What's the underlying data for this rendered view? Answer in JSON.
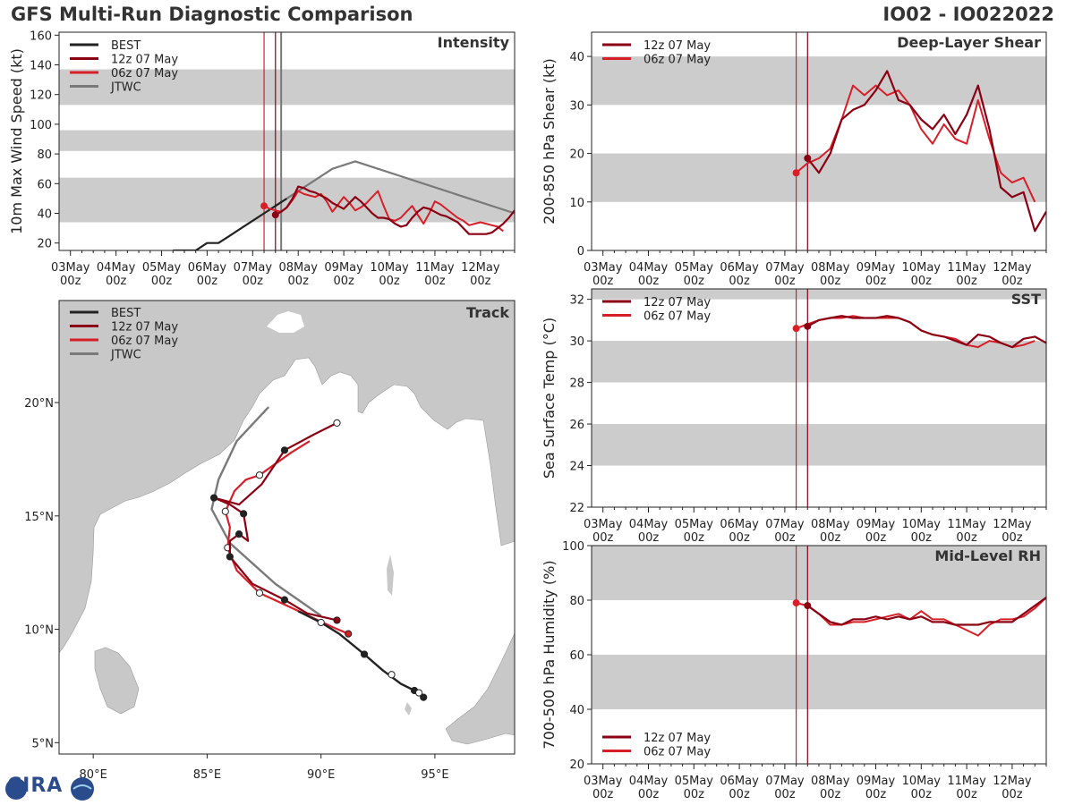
{
  "header": {
    "title": "GFS Multi-Run Diagnostic Comparison",
    "storm": "IO02 - IO022022"
  },
  "logo": {
    "label": "CIRA"
  },
  "colors": {
    "best": "#222222",
    "run12": "#8b0012",
    "run06": "#d81e28",
    "jtwc": "#7a7a7a",
    "band": "#cccccc",
    "land": "#c8c8c8",
    "vline": "#cc0000"
  },
  "time_axis": {
    "ticks": [
      {
        "day": 3,
        "l1": "03May",
        "l2": "00z"
      },
      {
        "day": 4,
        "l1": "04May",
        "l2": "00z"
      },
      {
        "day": 5,
        "l1": "05May",
        "l2": "00z"
      },
      {
        "day": 6,
        "l1": "06May",
        "l2": "00z"
      },
      {
        "day": 7,
        "l1": "07May",
        "l2": "00z"
      },
      {
        "day": 8,
        "l1": "08May",
        "l2": "00z"
      },
      {
        "day": 9,
        "l1": "09May",
        "l2": "00z"
      },
      {
        "day": 10,
        "l1": "10May",
        "l2": "00z"
      },
      {
        "day": 11,
        "l1": "11May",
        "l2": "00z"
      },
      {
        "day": 12,
        "l1": "12May",
        "l2": "00z"
      }
    ],
    "range": [
      2.75,
      12.75
    ]
  },
  "chart_data": [
    {
      "id": "intensity",
      "type": "line",
      "title": "Intensity",
      "ylabel": "10m Max Wind Speed (kt)",
      "ylim": [
        15,
        162
      ],
      "yticks": [
        20,
        40,
        60,
        80,
        100,
        120,
        140,
        160
      ],
      "bands": [
        [
          34,
          64
        ],
        [
          82,
          96
        ],
        [
          113,
          137
        ]
      ],
      "vlines": [
        7.25,
        7.5,
        7.625
      ],
      "legend": [
        "BEST",
        "12z 07 May",
        "06z 07 May",
        "JTWC"
      ],
      "series": [
        {
          "name": "BEST",
          "key": "best",
          "width": 2.2,
          "x": [
            5.25,
            5.5,
            5.75,
            6.0,
            6.25,
            6.5,
            6.75,
            7.0,
            7.25,
            7.5,
            7.75
          ],
          "y": [
            15,
            15,
            15,
            20,
            20,
            25,
            30,
            35,
            40,
            45,
            50
          ]
        },
        {
          "name": "JTWC",
          "key": "jtwc",
          "width": 2.2,
          "x": [
            7.75,
            8.25,
            8.75,
            9.25,
            9.75,
            10.25,
            10.75,
            11.25,
            11.75,
            12.25,
            12.75
          ],
          "y": [
            50,
            60,
            70,
            75,
            70,
            65,
            60,
            55,
            50,
            45,
            40
          ]
        },
        {
          "name": "06z 07 May",
          "key": "run06",
          "width": 2.0,
          "start_dot": true,
          "x": [
            7.25,
            7.375,
            7.5,
            7.625,
            7.75,
            7.875,
            8.0,
            8.125,
            8.25,
            8.375,
            8.5,
            8.625,
            8.75,
            8.875,
            9.0,
            9.125,
            9.25,
            9.375,
            9.5,
            9.625,
            9.75,
            9.875,
            10.0,
            10.125,
            10.25,
            10.375,
            10.5,
            10.625,
            10.75,
            10.875,
            11.0,
            11.125,
            11.25,
            11.375,
            11.5,
            11.625,
            11.75,
            11.875,
            12.0,
            12.125,
            12.25,
            12.375,
            12.5
          ],
          "y": [
            45,
            43,
            42,
            41,
            44,
            49,
            55,
            53,
            52,
            51,
            53,
            48,
            41,
            46,
            51,
            47,
            42,
            44,
            47,
            51,
            55,
            45,
            36,
            35,
            37,
            41,
            45,
            39,
            33,
            40,
            48,
            46,
            43,
            40,
            37,
            35,
            32,
            33,
            34,
            33,
            32,
            31,
            28
          ]
        },
        {
          "name": "12z 07 May",
          "key": "run12",
          "width": 2.2,
          "start_dot": true,
          "x": [
            7.5,
            7.625,
            7.75,
            7.875,
            8.0,
            8.125,
            8.25,
            8.375,
            8.5,
            8.625,
            8.75,
            8.875,
            9.0,
            9.125,
            9.25,
            9.375,
            9.5,
            9.625,
            9.75,
            9.875,
            10.0,
            10.125,
            10.25,
            10.375,
            10.5,
            10.625,
            10.75,
            10.875,
            11.0,
            11.125,
            11.25,
            11.375,
            11.5,
            11.625,
            11.75,
            11.875,
            12.0,
            12.125,
            12.25,
            12.375,
            12.5,
            12.625,
            12.75
          ],
          "y": [
            39,
            41,
            44,
            50,
            58,
            57,
            55,
            54,
            52,
            50,
            47,
            45,
            43,
            47,
            51,
            48,
            44,
            40,
            37,
            37,
            36,
            33,
            31,
            32,
            37,
            41,
            44,
            43,
            41,
            39,
            38,
            36,
            34,
            30,
            26,
            26,
            26,
            26,
            27,
            30,
            33,
            37,
            42
          ]
        }
      ]
    },
    {
      "id": "shear",
      "type": "line",
      "title": "Deep-Layer Shear",
      "ylabel": "200-850 hPa Shear (kt)",
      "ylim": [
        0,
        45
      ],
      "yticks": [
        0,
        10,
        20,
        30,
        40
      ],
      "bands": [
        [
          10,
          20
        ],
        [
          30,
          40
        ]
      ],
      "vlines": [
        7.25,
        7.5
      ],
      "legend": [
        "12z 07 May",
        "06z 07 May"
      ],
      "series": [
        {
          "name": "06z 07 May",
          "key": "run06",
          "width": 2.0,
          "start_dot": true,
          "x": [
            7.25,
            7.5,
            7.75,
            8.0,
            8.25,
            8.5,
            8.75,
            9.0,
            9.25,
            9.5,
            9.75,
            10.0,
            10.25,
            10.5,
            10.75,
            11.0,
            11.25,
            11.5,
            11.75,
            12.0,
            12.25,
            12.5
          ],
          "y": [
            16,
            18,
            19,
            21,
            27,
            34,
            32,
            34,
            32,
            33,
            30,
            25,
            22,
            26,
            23,
            22,
            31,
            23,
            16,
            14,
            15,
            10
          ]
        },
        {
          "name": "12z 07 May",
          "key": "run12",
          "width": 2.2,
          "start_dot": true,
          "x": [
            7.5,
            7.75,
            8.0,
            8.25,
            8.5,
            8.75,
            9.0,
            9.25,
            9.5,
            9.75,
            10.0,
            10.25,
            10.5,
            10.75,
            11.0,
            11.25,
            11.5,
            11.75,
            12.0,
            12.25,
            12.5,
            12.75
          ],
          "y": [
            19,
            16,
            20,
            27,
            29,
            30,
            33,
            37,
            31,
            30,
            27,
            25,
            28,
            24,
            28,
            34,
            25,
            13,
            11,
            12,
            4,
            8
          ]
        }
      ]
    },
    {
      "id": "sst",
      "type": "line",
      "title": "SST",
      "ylabel": "Sea Surface Temp (°C)",
      "ylim": [
        22,
        32.5
      ],
      "yticks": [
        22,
        24,
        26,
        28,
        30,
        32
      ],
      "bands": [
        [
          24,
          26
        ],
        [
          28,
          30
        ],
        [
          32,
          33
        ]
      ],
      "vlines": [
        7.25,
        7.5
      ],
      "legend": [
        "12z 07 May",
        "06z 07 May"
      ],
      "series": [
        {
          "name": "06z 07 May",
          "key": "run06",
          "width": 2.0,
          "start_dot": true,
          "x": [
            7.25,
            7.5,
            7.75,
            8.0,
            8.25,
            8.5,
            8.75,
            9.0,
            9.25,
            9.5,
            9.75,
            10.0,
            10.25,
            10.5,
            10.75,
            11.0,
            11.25,
            11.5,
            11.75,
            12.0,
            12.25,
            12.5
          ],
          "y": [
            30.6,
            30.8,
            31.0,
            31.1,
            31.1,
            31.2,
            31.1,
            31.1,
            31.1,
            31.1,
            30.9,
            30.5,
            30.3,
            30.2,
            30.1,
            29.8,
            29.7,
            30.0,
            29.9,
            29.7,
            29.8,
            30.0
          ]
        },
        {
          "name": "12z 07 May",
          "key": "run12",
          "width": 2.2,
          "start_dot": true,
          "x": [
            7.5,
            7.75,
            8.0,
            8.25,
            8.5,
            8.75,
            9.0,
            9.25,
            9.5,
            9.75,
            10.0,
            10.25,
            10.5,
            10.75,
            11.0,
            11.25,
            11.5,
            11.75,
            12.0,
            12.25,
            12.5,
            12.75
          ],
          "y": [
            30.7,
            31.0,
            31.1,
            31.2,
            31.1,
            31.1,
            31.1,
            31.2,
            31.1,
            30.9,
            30.5,
            30.3,
            30.2,
            30.0,
            29.8,
            30.3,
            30.2,
            29.9,
            29.7,
            30.1,
            30.2,
            29.9
          ]
        }
      ]
    },
    {
      "id": "rh",
      "type": "line",
      "title": "Mid-Level RH",
      "ylabel": "700-500 hPa Humidity (%)",
      "ylim": [
        20,
        100
      ],
      "yticks": [
        20,
        40,
        60,
        80,
        100
      ],
      "bands": [
        [
          40,
          60
        ],
        [
          80,
          100
        ]
      ],
      "vlines": [
        7.25,
        7.5
      ],
      "legend": [
        "12z 07 May",
        "06z 07 May"
      ],
      "legend_pos": "bottom-left",
      "series": [
        {
          "name": "06z 07 May",
          "key": "run06",
          "width": 2.0,
          "start_dot": true,
          "x": [
            7.25,
            7.5,
            7.75,
            8.0,
            8.25,
            8.5,
            8.75,
            9.0,
            9.25,
            9.5,
            9.75,
            10.0,
            10.25,
            10.5,
            10.75,
            11.0,
            11.25,
            11.5,
            11.75,
            12.0,
            12.25,
            12.5,
            12.75
          ],
          "y": [
            79,
            78,
            75,
            71,
            71,
            72,
            72,
            73,
            74,
            75,
            73,
            76,
            73,
            73,
            71,
            69,
            67,
            71,
            73,
            73,
            74,
            77,
            81
          ]
        },
        {
          "name": "12z 07 May",
          "key": "run12",
          "width": 2.2,
          "start_dot": true,
          "x": [
            7.5,
            7.75,
            8.0,
            8.25,
            8.5,
            8.75,
            9.0,
            9.25,
            9.5,
            9.75,
            10.0,
            10.25,
            10.5,
            10.75,
            11.0,
            11.25,
            11.5,
            11.75,
            12.0,
            12.25,
            12.5,
            12.75
          ],
          "y": [
            78,
            75,
            72,
            71,
            73,
            73,
            74,
            73,
            74,
            73,
            74,
            72,
            72,
            71,
            71,
            71,
            72,
            72,
            72,
            75,
            78,
            81
          ]
        }
      ]
    },
    {
      "id": "track",
      "type": "map",
      "title": "Track",
      "lon_range": [
        78.5,
        98.5
      ],
      "lat_range": [
        4.5,
        24.5
      ],
      "xticks": [
        {
          "v": 80,
          "label": "80°E"
        },
        {
          "v": 85,
          "label": "85°E"
        },
        {
          "v": 90,
          "label": "90°E"
        },
        {
          "v": 95,
          "label": "95°E"
        }
      ],
      "yticks": [
        {
          "v": 5,
          "label": "5°N"
        },
        {
          "v": 10,
          "label": "10°N"
        },
        {
          "v": 15,
          "label": "15°N"
        },
        {
          "v": 20,
          "label": "20°N"
        }
      ],
      "legend": [
        "BEST",
        "12z 07 May",
        "06z 07 May",
        "JTWC"
      ],
      "tracks": [
        {
          "name": "JTWC",
          "key": "jtwc",
          "width": 2.4,
          "lon": [
            90.0,
            88.0,
            86.0,
            85.2,
            85.5,
            86.3,
            87.7
          ],
          "lat": [
            10.6,
            12.0,
            13.8,
            15.3,
            16.6,
            18.3,
            19.8
          ],
          "markers": []
        },
        {
          "name": "06z 07 May",
          "key": "run06",
          "width": 2.2,
          "lon": [
            91.2,
            90.5,
            88.6,
            87.3,
            86.3,
            85.9,
            86.0,
            85.8,
            86.2,
            86.7,
            87.3,
            88.7,
            89.5
          ],
          "lat": [
            9.8,
            10.1,
            11.0,
            11.6,
            12.6,
            13.6,
            14.5,
            15.2,
            16.1,
            16.6,
            16.8,
            17.8,
            18.3
          ],
          "markers": [
            {
              "i": 0,
              "fill": "run06"
            },
            {
              "i": 3,
              "fill": "white"
            },
            {
              "i": 5,
              "fill": "white"
            },
            {
              "i": 7,
              "fill": "white"
            },
            {
              "i": 10,
              "fill": "white"
            }
          ]
        },
        {
          "name": "12z 07 May",
          "key": "run12",
          "width": 2.2,
          "lon": [
            90.7,
            89.4,
            88.4,
            87.0,
            86.0,
            86.0,
            86.4,
            86.8,
            86.6,
            86.0,
            85.3,
            86.4,
            87.4,
            88.4,
            89.7,
            90.7
          ],
          "lat": [
            10.4,
            10.7,
            11.3,
            12.0,
            13.2,
            13.9,
            14.2,
            13.9,
            15.1,
            15.5,
            15.8,
            15.5,
            16.4,
            17.9,
            18.6,
            19.1
          ],
          "markers": [
            {
              "i": 0,
              "fill": "run12"
            },
            {
              "i": 2,
              "fill": "black"
            },
            {
              "i": 4,
              "fill": "black"
            },
            {
              "i": 6,
              "fill": "black"
            },
            {
              "i": 8,
              "fill": "black"
            },
            {
              "i": 10,
              "fill": "black"
            },
            {
              "i": 13,
              "fill": "black"
            },
            {
              "i": 15,
              "fill": "white"
            }
          ]
        },
        {
          "name": "BEST",
          "key": "best",
          "width": 2.4,
          "lon": [
            94.5,
            94.1,
            93.5,
            92.7,
            91.9,
            90.8,
            90.0,
            89.0
          ],
          "lat": [
            7.0,
            7.3,
            7.6,
            8.2,
            8.9,
            9.8,
            10.3,
            10.8
          ],
          "markers": [
            {
              "i": 0,
              "fill": "black"
            },
            {
              "i": 1,
              "fill": "black"
            },
            {
              "i": 4,
              "fill": "black"
            },
            {
              "i": 6,
              "fill": "white"
            }
          ]
        },
        {
          "name": "BEST-ext",
          "key": "best",
          "width": 2.4,
          "lon": [
            94.3,
            93.1
          ],
          "lat": [
            7.2,
            8.0
          ],
          "markers": [
            {
              "i": 0,
              "fill": "white"
            },
            {
              "i": 1,
              "fill": "white"
            }
          ]
        }
      ]
    }
  ]
}
